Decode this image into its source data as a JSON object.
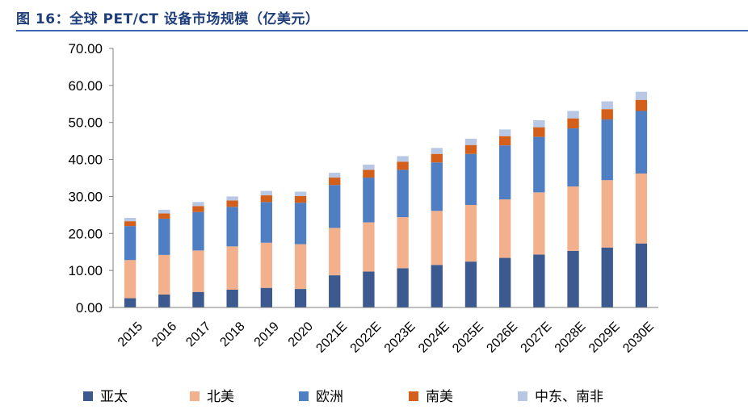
{
  "title": "图 16：全球 PET/CT 设备市场规模（亿美元）",
  "chart_data": {
    "type": "bar",
    "stacked": true,
    "title": "",
    "xlabel": "",
    "ylabel": "",
    "ylim": [
      0,
      70
    ],
    "yticks": [
      "0.00",
      "10.00",
      "20.00",
      "30.00",
      "40.00",
      "50.00",
      "60.00",
      "70.00"
    ],
    "grid": false,
    "legend_position": "bottom",
    "categories": [
      "2015",
      "2016",
      "2017",
      "2018",
      "2019",
      "2020",
      "2021E",
      "2022E",
      "2023E",
      "2024E",
      "2025E",
      "2026E",
      "2027E",
      "2028E",
      "2029E",
      "2030E"
    ],
    "series": [
      {
        "name": "亚太",
        "color": "#3c5a8f",
        "values": [
          2.5,
          3.5,
          4.2,
          4.8,
          5.3,
          5.0,
          8.7,
          9.7,
          10.6,
          11.5,
          12.4,
          13.4,
          14.3,
          15.3,
          16.2,
          17.3
        ]
      },
      {
        "name": "北美",
        "color": "#f2b08c",
        "values": [
          10.3,
          10.7,
          11.2,
          11.7,
          12.2,
          12.1,
          12.8,
          13.3,
          13.8,
          14.6,
          15.3,
          15.8,
          16.8,
          17.4,
          18.2,
          18.9
        ]
      },
      {
        "name": "欧洲",
        "color": "#4f7ec2",
        "values": [
          9.2,
          9.8,
          10.4,
          10.7,
          11.0,
          11.2,
          11.6,
          12.1,
          12.8,
          13.1,
          13.8,
          14.6,
          15.0,
          15.7,
          16.4,
          16.9
        ]
      },
      {
        "name": "南美",
        "color": "#d35f1a",
        "values": [
          1.3,
          1.4,
          1.6,
          1.7,
          1.8,
          1.8,
          2.0,
          2.1,
          2.2,
          2.3,
          2.4,
          2.5,
          2.6,
          2.7,
          2.8,
          3.0
        ]
      },
      {
        "name": "中东、南非",
        "color": "#b7c7e4",
        "values": [
          0.9,
          1.0,
          1.1,
          1.1,
          1.2,
          1.2,
          1.3,
          1.4,
          1.5,
          1.6,
          1.7,
          1.8,
          1.9,
          2.0,
          2.1,
          2.2
        ]
      }
    ]
  }
}
